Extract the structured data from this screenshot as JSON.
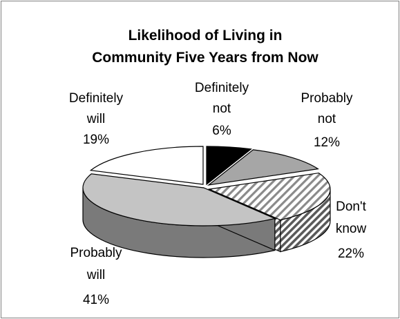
{
  "chart_data": {
    "type": "pie",
    "title": [
      "Likelihood of Living in",
      "Community Five Years from Now"
    ],
    "slices": [
      {
        "label": [
          "Definitely",
          "not"
        ],
        "pct_label": "6%",
        "value": 6,
        "fill": "#000000",
        "side": "#000000",
        "pattern": "none"
      },
      {
        "label": [
          "Probably",
          "not"
        ],
        "pct_label": "12%",
        "value": 12,
        "fill": "#a6a6a6",
        "side": "#808080",
        "pattern": "none"
      },
      {
        "label": [
          "Don't",
          "know"
        ],
        "pct_label": "22%",
        "value": 22,
        "fill": "#ffffff",
        "side": "#ffffff",
        "pattern": "diagonal-stripes"
      },
      {
        "label": [
          "Probably",
          "will"
        ],
        "pct_label": "41%",
        "value": 41,
        "fill": "#c4c4c4",
        "side": "#7a7a7a",
        "pattern": "none"
      },
      {
        "label": [
          "Definitely",
          "will"
        ],
        "pct_label": "19%",
        "value": 19,
        "fill": "#ffffff",
        "side": "#ffffff",
        "pattern": "none"
      }
    ],
    "style": "3d-exploded-pie"
  }
}
